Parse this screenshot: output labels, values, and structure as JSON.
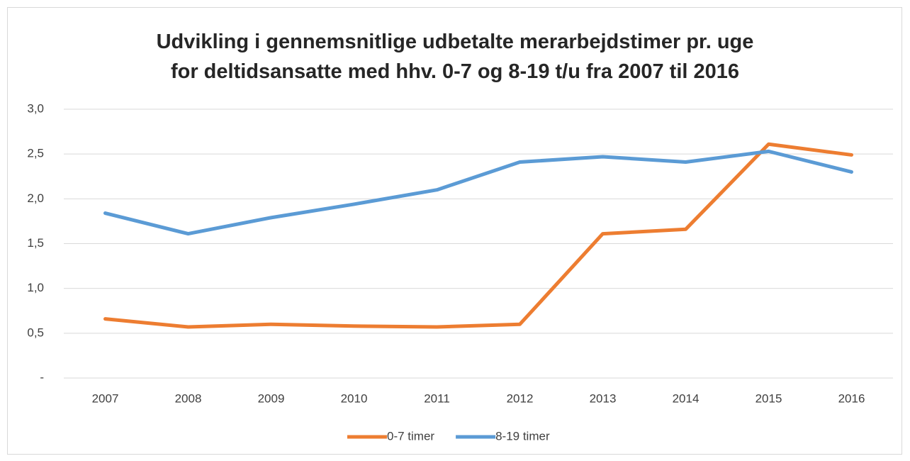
{
  "chart_data": {
    "type": "line",
    "title": "Udvikling i gennemsnitlige udbetalte merarbejdstimer pr. uge for deltidsansatte med hhv. 0-7 og 8-19 t/u fra 2007 til 2016",
    "categories": [
      "2007",
      "2008",
      "2009",
      "2010",
      "2011",
      "2012",
      "2013",
      "2014",
      "2015",
      "2016"
    ],
    "series": [
      {
        "name": "0-7 timer",
        "color": "#ed7d31",
        "values": [
          0.66,
          0.57,
          0.6,
          0.58,
          0.57,
          0.6,
          1.61,
          1.66,
          2.61,
          2.49
        ]
      },
      {
        "name": "8-19 timer",
        "color": "#5b9bd5",
        "values": [
          1.84,
          1.61,
          1.79,
          1.94,
          2.1,
          2.41,
          2.47,
          2.41,
          2.53,
          2.3
        ]
      }
    ],
    "ylim": [
      0,
      3
    ],
    "yticks": [
      {
        "value": 0,
        "label": "-"
      },
      {
        "value": 0.5,
        "label": "0,5"
      },
      {
        "value": 1,
        "label": "1,0"
      },
      {
        "value": 1.5,
        "label": "1,5"
      },
      {
        "value": 2,
        "label": "2,0"
      },
      {
        "value": 2.5,
        "label": "2,5"
      },
      {
        "value": 3,
        "label": "3,0"
      }
    ],
    "grid": true,
    "legend": "bottom"
  }
}
